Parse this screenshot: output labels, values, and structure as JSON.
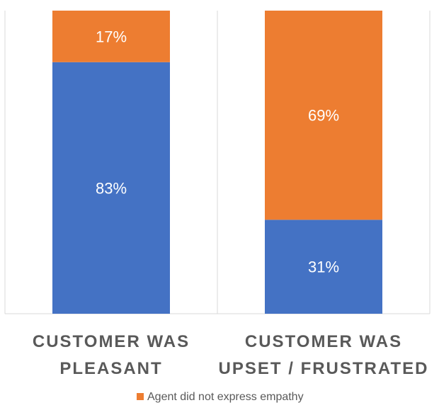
{
  "chart_data": {
    "type": "bar",
    "stacked": true,
    "normalized": true,
    "categories": [
      [
        "CUSTOMER WAS",
        "PLEASANT"
      ],
      [
        "CUSTOMER WAS",
        "UPSET / FRUSTRATED"
      ]
    ],
    "series": [
      {
        "values": [
          83,
          31
        ],
        "labels": [
          "83%",
          "31%"
        ],
        "color": "#4472C4"
      },
      {
        "name": "Agent did not express empathy",
        "values": [
          17,
          69
        ],
        "labels": [
          "17%",
          "69%"
        ],
        "color": "#ED7D31"
      }
    ],
    "ylim": [
      0,
      100
    ],
    "grid": false,
    "legend_position": "bottom",
    "legend_visible_entries": [
      "Agent did not express empathy"
    ]
  }
}
